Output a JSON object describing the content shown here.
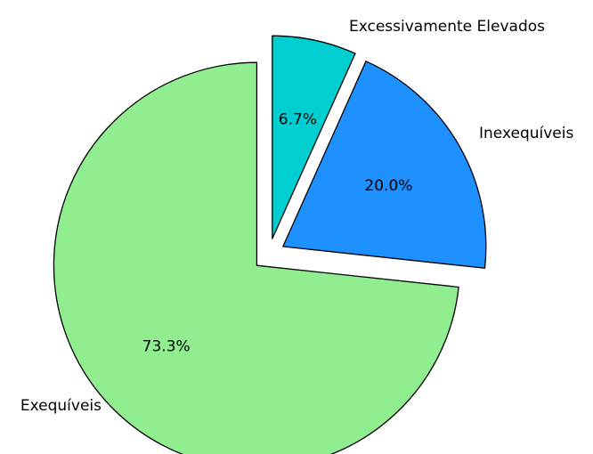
{
  "chart_data": {
    "type": "pie",
    "title": "",
    "exploded": "all slices slightly offset from center",
    "slices": [
      {
        "label": "Exequíveis",
        "value": 73.3,
        "pct_label": "73.3%",
        "color": "#90EE90"
      },
      {
        "label": "Inexequíveis",
        "value": 20.0,
        "pct_label": "20.0%",
        "color": "#1E90FF"
      },
      {
        "label": "Excessivamente Elevados",
        "value": 6.7,
        "pct_label": "6.7%",
        "color": "#00CED1"
      }
    ]
  }
}
